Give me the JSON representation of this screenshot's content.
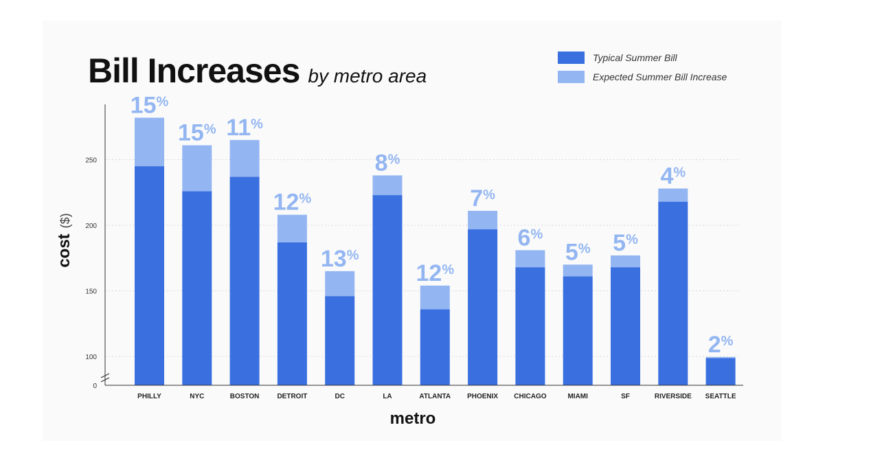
{
  "title": {
    "main": "Bill Increases",
    "sub": "by metro area"
  },
  "legend": [
    {
      "label": "Typical Summer Bill",
      "color": "#3a6fe0"
    },
    {
      "label": "Expected Summer Bill Increase",
      "color": "#93b6f2"
    }
  ],
  "chart_data": {
    "type": "bar",
    "stacked": true,
    "title": "Bill Increases by metro area",
    "xlabel": "metro",
    "ylabel": "cost",
    "ylabel_unit": "($)",
    "categories": [
      "PHILLY",
      "NYC",
      "BOSTON",
      "DETROIT",
      "DC",
      "LA",
      "ATLANTA",
      "PHOENIX",
      "CHICAGO",
      "MIAMI",
      "SF",
      "RIVERSIDE",
      "SEATTLE"
    ],
    "series": [
      {
        "name": "Typical Summer Bill",
        "color": "#3a6fe0",
        "values": [
          245,
          226,
          237,
          187,
          146,
          223,
          136,
          197,
          168,
          161,
          168,
          218,
          94
        ]
      },
      {
        "name": "Expected Summer Bill Increase",
        "color": "#93b6f2",
        "values": [
          37,
          35,
          28,
          21,
          19,
          15,
          18,
          14,
          13,
          9,
          9,
          10,
          4
        ]
      }
    ],
    "bar_labels": [
      "15",
      "15",
      "11",
      "12",
      "13",
      "8",
      "12",
      "7",
      "6",
      "5",
      "5",
      "4",
      "2"
    ],
    "label_suffix": "%",
    "yticks": [
      0,
      100,
      150,
      200,
      250
    ],
    "ylim": [
      0,
      300
    ],
    "axis_break": true,
    "grid": true
  }
}
